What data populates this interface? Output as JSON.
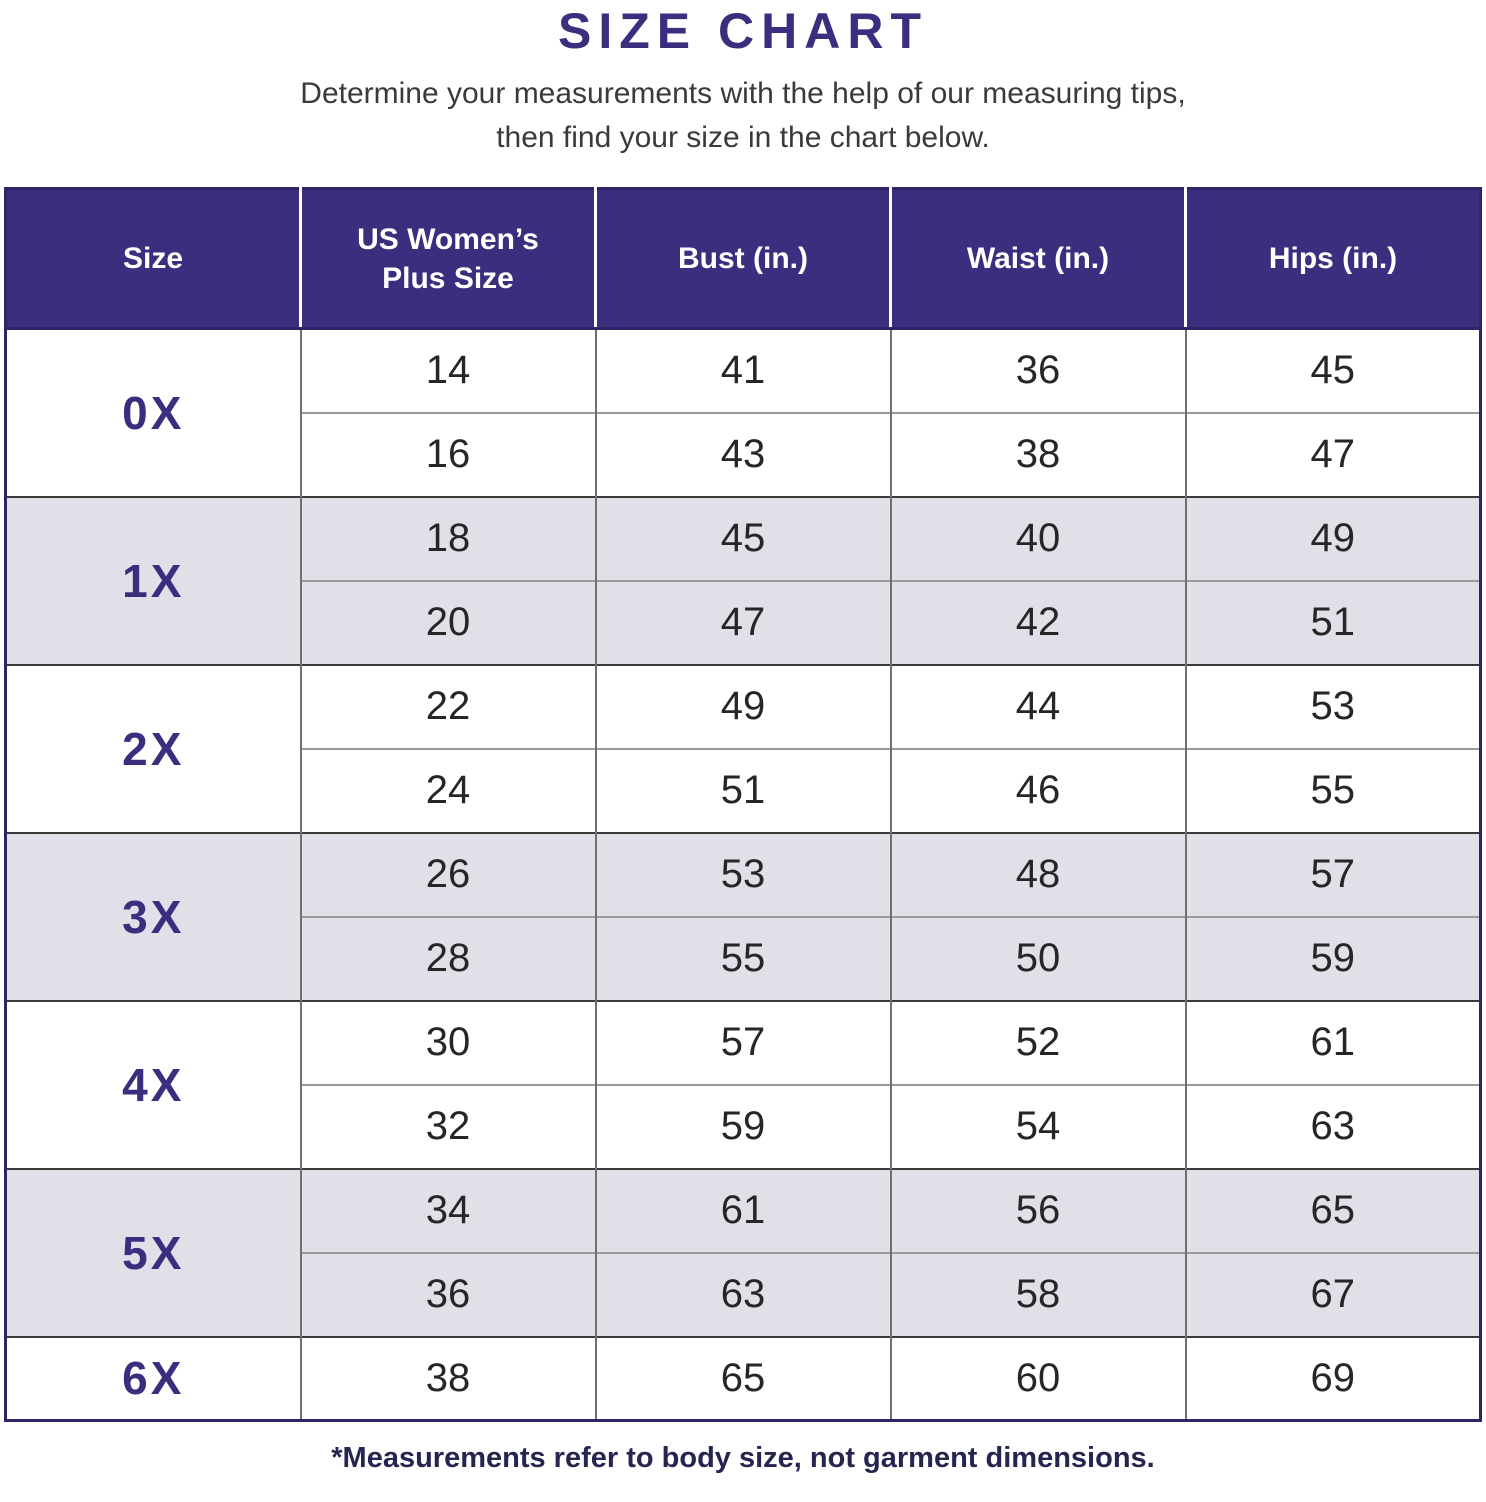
{
  "title": "SIZE CHART",
  "subtitle_line1": "Determine your measurements with the help of our measuring tips,",
  "subtitle_line2": "then find your size in the chart below.",
  "footnote": "*Measurements refer to body size, not garment dimensions.",
  "colors": {
    "header_bg": "#3B2E7E",
    "accent_text": "#3B2E7E",
    "shaded_row_bg": "#E3DFE9",
    "outer_border": "#2C2566",
    "group_divider": "#3A3A3A",
    "grid_line": "#6F6F6F",
    "body_text": "#262626"
  },
  "chart_data": {
    "type": "table",
    "title": "SIZE CHART",
    "columns": [
      "Size",
      "US Women’s Plus Size",
      "Bust (in.)",
      "Waist (in.)",
      "Hips (in.)"
    ],
    "groups": [
      {
        "size": "0X",
        "shaded": false,
        "rows": [
          [
            "14",
            "41",
            "36",
            "45"
          ],
          [
            "16",
            "43",
            "38",
            "47"
          ]
        ]
      },
      {
        "size": "1X",
        "shaded": true,
        "rows": [
          [
            "18",
            "45",
            "40",
            "49"
          ],
          [
            "20",
            "47",
            "42",
            "51"
          ]
        ]
      },
      {
        "size": "2X",
        "shaded": false,
        "rows": [
          [
            "22",
            "49",
            "44",
            "53"
          ],
          [
            "24",
            "51",
            "46",
            "55"
          ]
        ]
      },
      {
        "size": "3X",
        "shaded": true,
        "rows": [
          [
            "26",
            "53",
            "48",
            "57"
          ],
          [
            "28",
            "55",
            "50",
            "59"
          ]
        ]
      },
      {
        "size": "4X",
        "shaded": false,
        "rows": [
          [
            "30",
            "57",
            "52",
            "61"
          ],
          [
            "32",
            "59",
            "54",
            "63"
          ]
        ]
      },
      {
        "size": "5X",
        "shaded": true,
        "rows": [
          [
            "34",
            "61",
            "56",
            "65"
          ],
          [
            "36",
            "63",
            "58",
            "67"
          ]
        ]
      },
      {
        "size": "6X",
        "shaded": false,
        "rows": [
          [
            "38",
            "65",
            "60",
            "69"
          ]
        ]
      }
    ]
  }
}
